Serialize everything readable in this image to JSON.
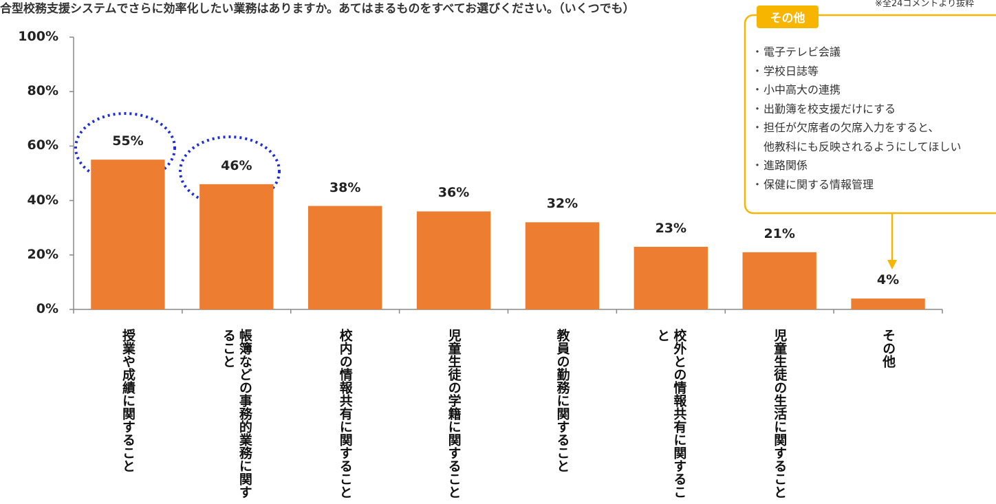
{
  "chart_data": {
    "type": "bar",
    "title": "合型校務支援システムでさらに効率化したい業務はありますか。あてはまるものをすべてお選びください。（いくつでも）",
    "note": "※全24コメントより抜粋",
    "categories": [
      "授業や成績に関すること",
      "帳簿などの事務的業務に関すること",
      "校内の情報共有に関すること",
      "児童生徒の学籍に関すること",
      "教員の勤務に関すること",
      "校外との情報共有に関すること",
      "児童生徒の生活に関すること",
      "その他"
    ],
    "values": [
      55,
      46,
      38,
      36,
      32,
      23,
      21,
      4
    ],
    "value_labels": [
      "55%",
      "46%",
      "38%",
      "36%",
      "32%",
      "23%",
      "21%",
      "4%"
    ],
    "color": "#ed7d31",
    "ylim": [
      0,
      100
    ],
    "yticks": [
      {
        "value": 0,
        "label": "0%"
      },
      {
        "value": 20,
        "label": "20%"
      },
      {
        "value": 40,
        "label": "40%"
      },
      {
        "value": 60,
        "label": "60%"
      },
      {
        "value": 80,
        "label": "80%"
      },
      {
        "value": 100,
        "label": "100%"
      }
    ],
    "annotation": {
      "title": "その他",
      "items": [
        "電子テレビ会議",
        "学校日誌等",
        "小中高大の連携",
        "出勤簿を校支援だけにする",
        [
          "担任が欠席者の欠席入力をすると、",
          "他教科にも反映されるようにしてほしい"
        ],
        "進路関係",
        "保健に関する情報管理"
      ]
    }
  }
}
